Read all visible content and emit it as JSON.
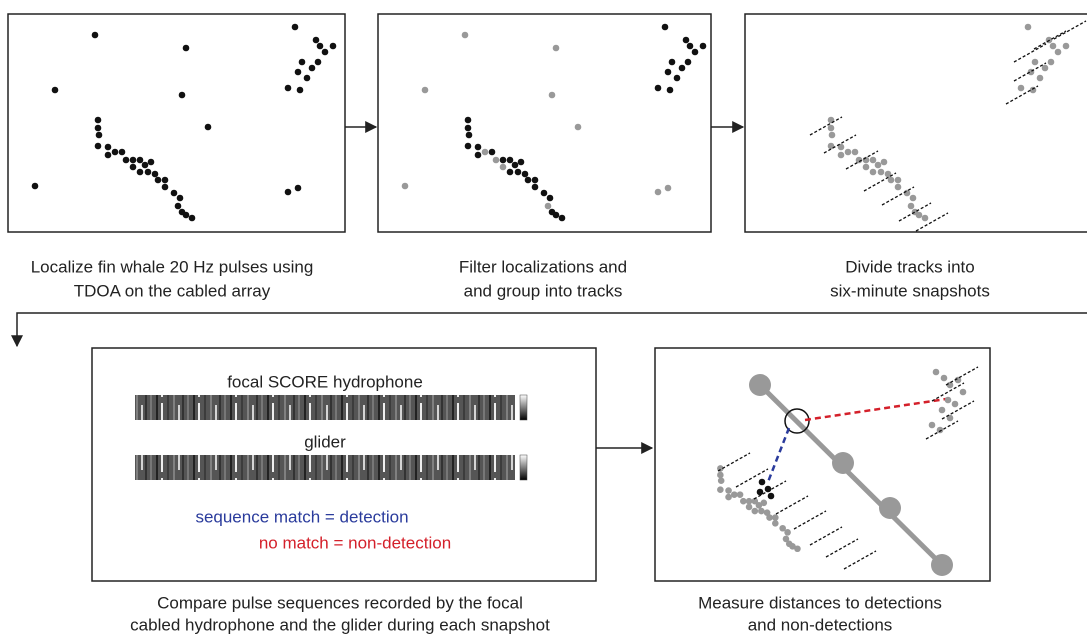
{
  "panels": [
    {
      "caption": [
        "Localize fin whale 20 Hz pulses using",
        "TDOA on the cabled array"
      ]
    },
    {
      "caption": [
        "Filter localizations and",
        "and group into tracks"
      ]
    },
    {
      "caption": [
        "Divide tracks into",
        "six-minute snapshots"
      ]
    },
    {
      "caption": [
        "Compare pulse sequences recorded by the focal",
        "cabled hydrophone and the glider during each snapshot"
      ],
      "spectrogram_titles": [
        "focal SCORE hydrophone",
        "glider"
      ],
      "legend": {
        "match": "sequence match = detection",
        "no_match": "no match = non-detection"
      }
    },
    {
      "caption": [
        "Measure distances to detections",
        "and non-detections"
      ]
    }
  ]
}
